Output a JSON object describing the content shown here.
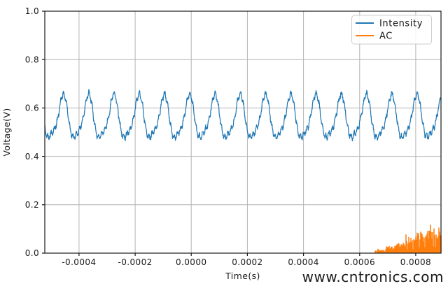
{
  "chart_data": {
    "type": "line",
    "title": "",
    "xlabel": "Time(s)",
    "ylabel": "Voltage(V)",
    "xlim": [
      -0.000522,
      0.00089
    ],
    "ylim": [
      0.0,
      1.0
    ],
    "grid": true,
    "grid_color": "#b4b4b4",
    "spine_color": "#1a1a1a",
    "xticks": [
      -0.0004,
      -0.0002,
      0.0,
      0.0002,
      0.0004,
      0.0006,
      0.0008
    ],
    "xtick_labels": [
      "-0.0004",
      "-0.0002",
      "0.0000",
      "0.0002",
      "0.0004",
      "0.0006",
      "0.0008"
    ],
    "yticks": [
      0.0,
      0.2,
      0.4,
      0.6,
      0.8,
      1.0
    ],
    "ytick_labels": [
      "0.0",
      "0.2",
      "0.4",
      "0.6",
      "0.8",
      "1.0"
    ],
    "legend": {
      "position": "upper right",
      "entries": [
        {
          "label": "Intensity",
          "color": "#1f77b4"
        },
        {
          "label": "AC",
          "color": "#ff7f0e"
        }
      ]
    },
    "series": [
      {
        "name": "Intensity",
        "color": "#1f77b4",
        "kind": "noisy_periodic_wave",
        "x_start": -0.000522,
        "x_end": 0.00089,
        "mean_v": 0.5545,
        "fundamental_amp_v": 0.085,
        "second_harmonic_amp_v": 0.02,
        "second_harmonic_phase": -0.6,
        "ripple_amp_v": 0.012,
        "ripples_per_cycle": 8,
        "noise_amp_v": 0.016,
        "period_s": 9e-05,
        "peak_time_s": -0.0004575,
        "approx_peak_v": 0.665,
        "approx_trough_v": 0.477
      },
      {
        "name": "AC",
        "color": "#ff7f0e",
        "kind": "pulse_burst",
        "x_start": 0.000655,
        "x_end": 0.00089,
        "baseline_v": 0.0,
        "envelope_steps": [
          {
            "until_s": 0.00069,
            "level_v": 0.014
          },
          {
            "until_s": 0.00073,
            "level_v": 0.03
          },
          {
            "until_s": 0.000765,
            "level_v": 0.045
          },
          {
            "until_s": 0.0008,
            "level_v": 0.068
          },
          {
            "until_s": 0.00084,
            "level_v": 0.085
          },
          {
            "until_s": 0.00089,
            "level_v": 0.105
          }
        ],
        "max_spike_v": 0.118
      }
    ],
    "watermark": {
      "text": "www.cntronics.com",
      "color": "#b5dfb6"
    }
  }
}
